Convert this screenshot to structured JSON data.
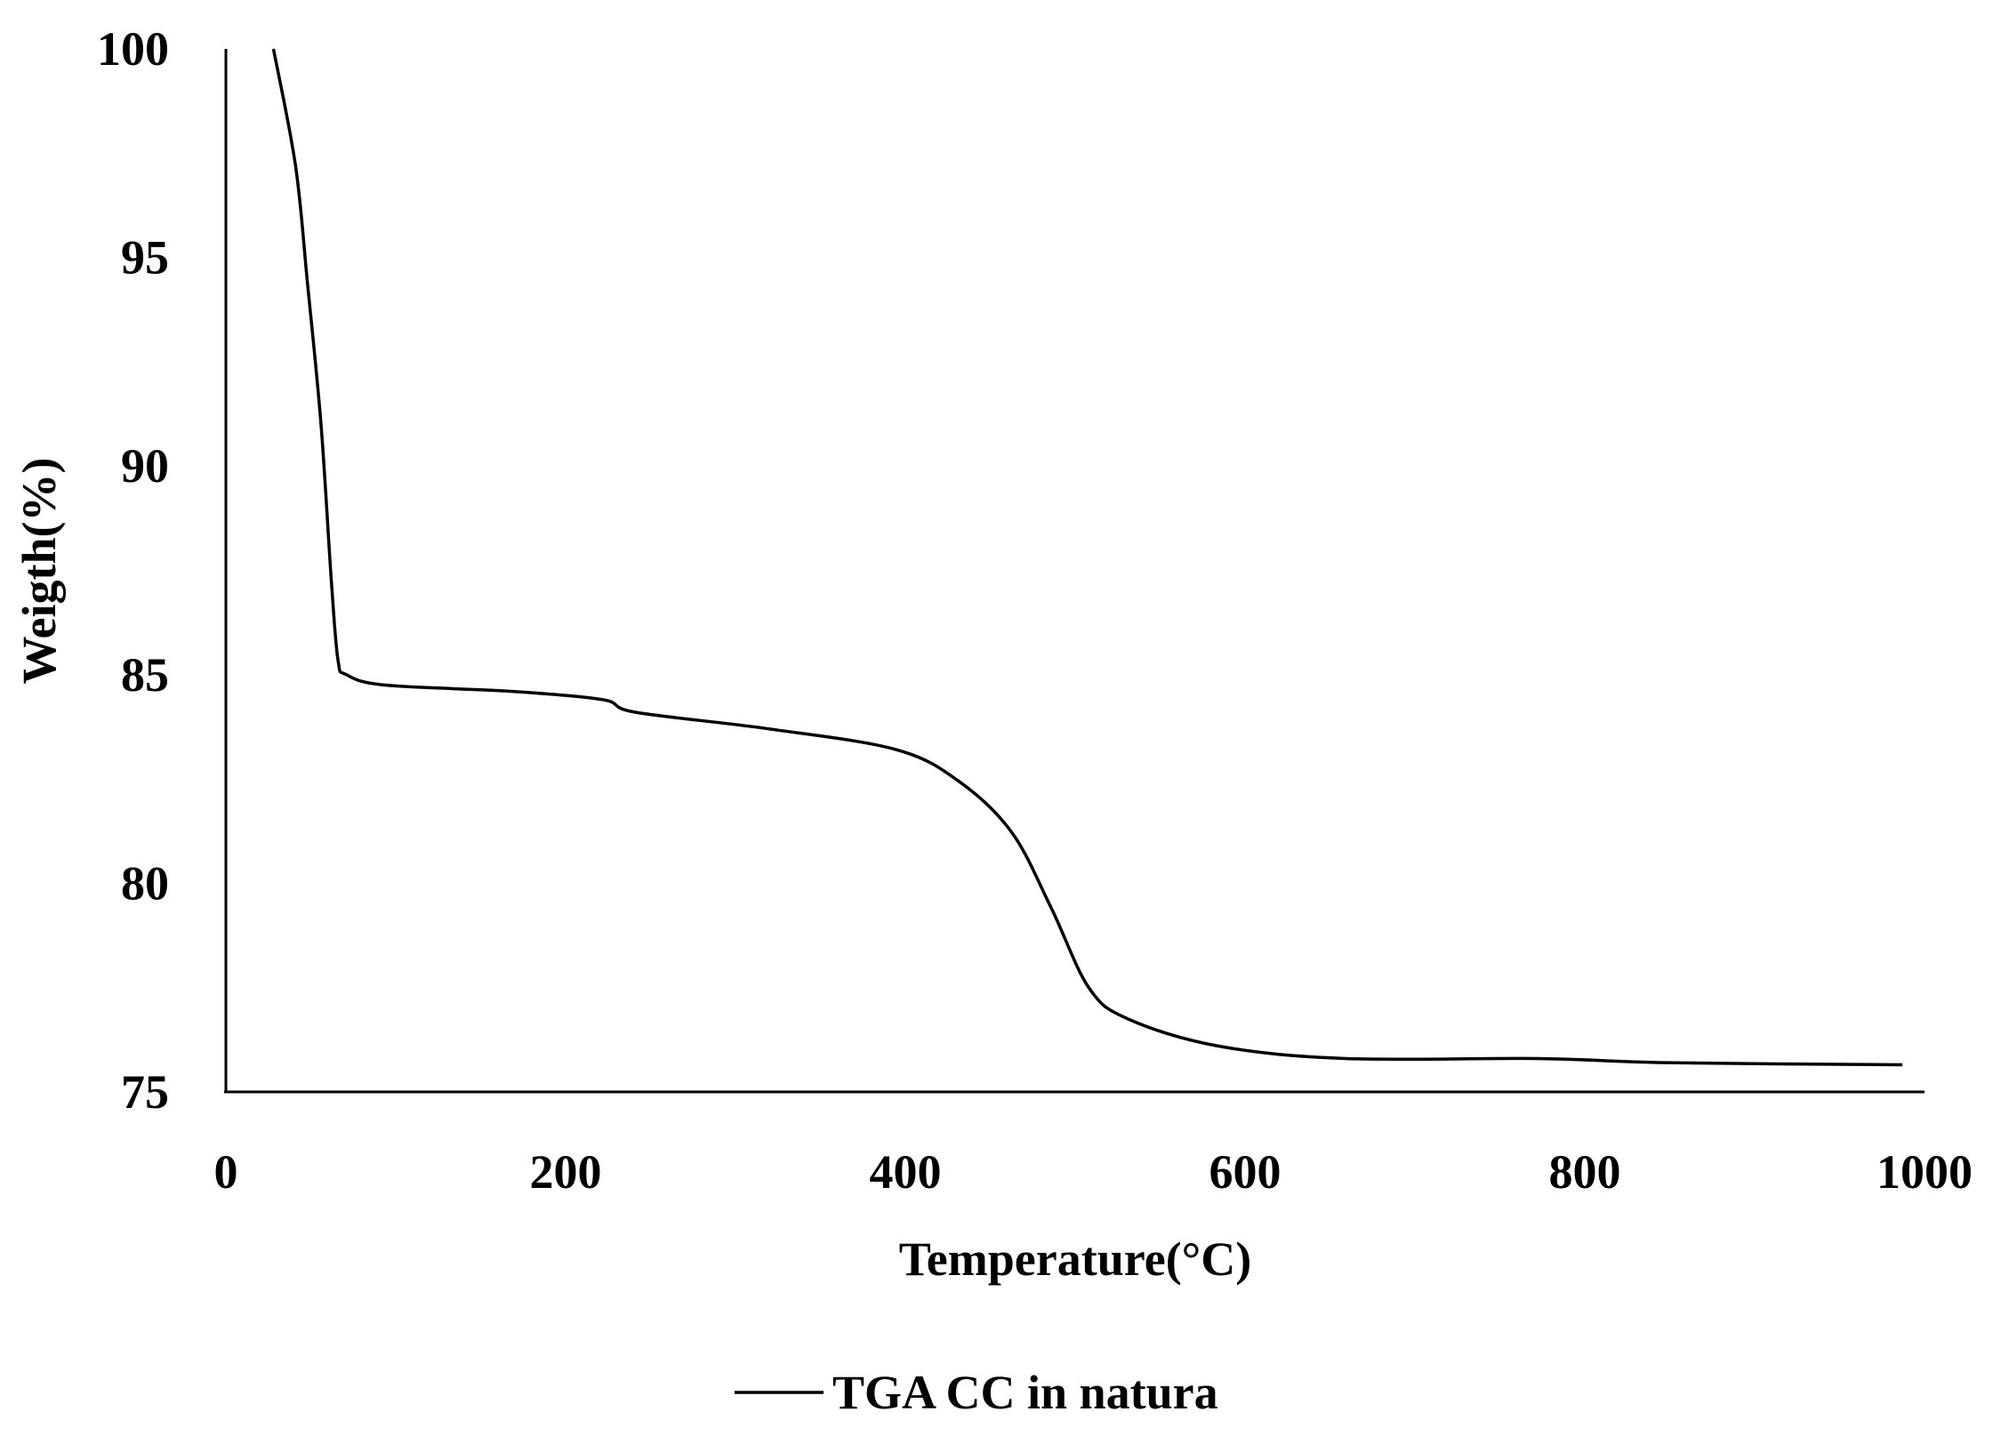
{
  "chart_data": {
    "type": "line",
    "title": "",
    "xlabel": "Temperature(°C)",
    "ylabel": "Weigth(%)",
    "xlim": [
      0,
      1000
    ],
    "ylim": [
      75,
      100
    ],
    "xticks": [
      "0",
      "200",
      "400",
      "600",
      "800",
      "1000"
    ],
    "yticks": [
      "75",
      "80",
      "85",
      "90",
      "95",
      "100"
    ],
    "grid": false,
    "legend_position": "bottom-center",
    "series": [
      {
        "name": "TGA CC in natura",
        "color": "#000000",
        "x": [
          28,
          41,
          48,
          56,
          62,
          66,
          71,
          94,
          169,
          222,
          241,
          320,
          395,
          433,
          463,
          486,
          508,
          531,
          584,
          659,
          772,
          848,
          987
        ],
        "y": [
          100,
          97.2,
          94.4,
          91.0,
          87.3,
          85.35,
          85.0,
          84.75,
          84.6,
          84.4,
          84.1,
          83.7,
          83.2,
          82.4,
          81.2,
          79.4,
          77.5,
          76.75,
          76.1,
          75.8,
          75.8,
          75.7,
          75.65
        ]
      }
    ]
  }
}
